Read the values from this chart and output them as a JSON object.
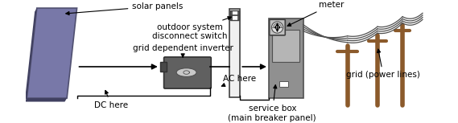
{
  "bg_color": "#ffffff",
  "panel_color": "#7878a8",
  "panel_edge": "#505070",
  "panel_shadow": "#404060",
  "inverter_body": "#606060",
  "inverter_cap": "#484848",
  "disconnect_color": "#f0f0f0",
  "disconnect_border": "#404040",
  "service_box_color": "#909090",
  "service_box_border": "#505050",
  "meter_color": "#b0b0b0",
  "meter_border": "#404040",
  "pole_color": "#8B5A2B",
  "wire_color": "#505050",
  "line_color": "#000000",
  "arrow_color": "#000000",
  "text_color": "#000000",
  "labels": {
    "solar_panels": "solar panels",
    "outdoor_switch": "outdoor system\ndisconnect switch",
    "inverter": "grid dependent inverter",
    "ac_here": "AC here",
    "dc_here": "DC here",
    "meter": "meter",
    "service_box": "service box\n(main breaker panel)",
    "grid": "grid (power lines)"
  },
  "figsize": [
    5.69,
    1.53
  ],
  "dpi": 100
}
